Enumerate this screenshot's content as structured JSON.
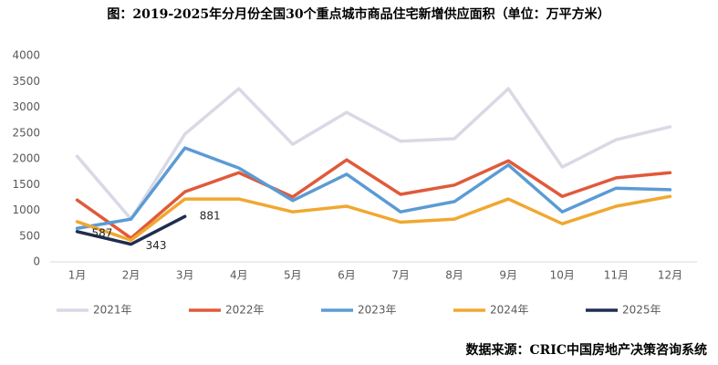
{
  "chart_data": {
    "type": "line",
    "title": "图：2019-2025年分月份全国30个重点城市商品住宅新增供应面积（单位：万平方米）",
    "source": "数据来源：CRIC中国房地产决策咨询系统",
    "categories": [
      "1月",
      "2月",
      "3月",
      "4月",
      "5月",
      "6月",
      "7月",
      "8月",
      "9月",
      "10月",
      "11月",
      "12月"
    ],
    "ylim": [
      0,
      4000
    ],
    "yticks": [
      0,
      500,
      1000,
      1500,
      2000,
      2500,
      3000,
      3500,
      4000
    ],
    "legend": "bottom",
    "series": [
      {
        "name": "2021年",
        "color": "#d9d9e6",
        "values": [
          2050,
          830,
          2480,
          3360,
          2280,
          2900,
          2340,
          2390,
          3360,
          1840,
          2370,
          2620
        ]
      },
      {
        "name": "2022年",
        "color": "#e05a3a",
        "values": [
          1200,
          460,
          1360,
          1730,
          1260,
          1980,
          1310,
          1490,
          1960,
          1270,
          1630,
          1730
        ]
      },
      {
        "name": "2023年",
        "color": "#5b9bd5",
        "values": [
          650,
          830,
          2210,
          1820,
          1190,
          1700,
          970,
          1170,
          1880,
          970,
          1430,
          1400
        ]
      },
      {
        "name": "2024年",
        "color": "#f0a830",
        "values": [
          780,
          420,
          1220,
          1220,
          970,
          1080,
          770,
          830,
          1220,
          740,
          1080,
          1270
        ]
      },
      {
        "name": "2025年",
        "color": "#1f2d50",
        "data_labels": true,
        "values": [
          587,
          343,
          881,
          null,
          null,
          null,
          null,
          null,
          null,
          null,
          null,
          null
        ]
      }
    ]
  }
}
